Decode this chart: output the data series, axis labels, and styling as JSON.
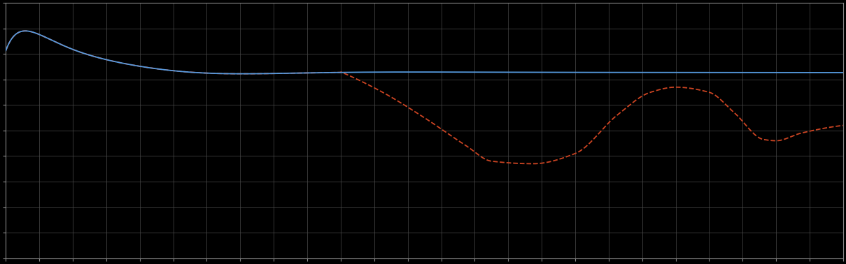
{
  "background_color": "#000000",
  "grid_color": "#4a4a4a",
  "axis_color": "#888888",
  "line1_color": "#5599dd",
  "line2_color": "#cc4422",
  "line1_style": "-",
  "line2_style": "--",
  "line_width": 1.3,
  "figsize": [
    12.09,
    3.78
  ],
  "dpi": 100,
  "n_points": 1000,
  "n_xgrid": 26,
  "n_ygrid": 11,
  "ylim": [
    0.0,
    1.0
  ],
  "xlim": [
    0.0,
    1.0
  ]
}
